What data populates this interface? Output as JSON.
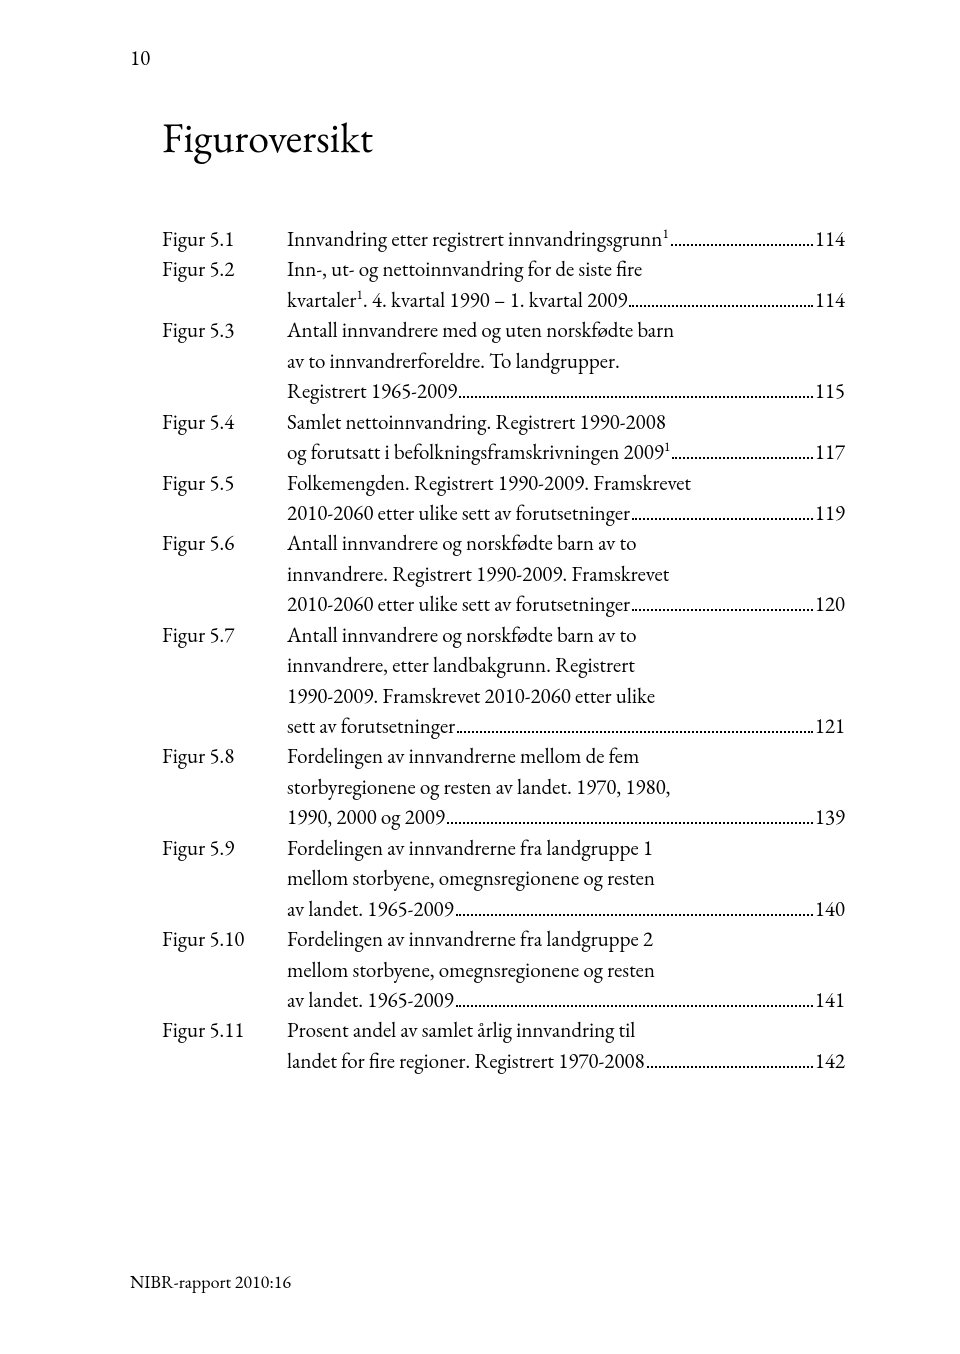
{
  "page_number": "10",
  "title": "Figuroversikt",
  "footer": "NIBR-rapport 2010:16",
  "entries": [
    {
      "label": "Figur 5.1",
      "lines": [
        {
          "text": "Innvandring etter registrert innvandringsgrunn",
          "sup": "1",
          "page": "114"
        }
      ]
    },
    {
      "label": "Figur 5.2",
      "lines": [
        {
          "text": "Inn-, ut- og nettoinnvandring for de siste fire"
        },
        {
          "text": "kvartaler",
          "sup": "1",
          "after_sup": ". 4. kvartal 1990 – 1. kvartal 2009",
          "page": "114"
        }
      ]
    },
    {
      "label": "Figur 5.3",
      "lines": [
        {
          "text": "Antall innvandrere med og uten norskfødte barn"
        },
        {
          "text": "av to innvandrerforeldre. To landgrupper."
        },
        {
          "text": "Registrert 1965-2009",
          "page": "115"
        }
      ]
    },
    {
      "label": "Figur 5.4",
      "lines": [
        {
          "text": "Samlet nettoinnvandring. Registrert 1990-2008"
        },
        {
          "text": "og forutsatt i befolkningsframskrivningen 2009",
          "sup": "1",
          "page": "117"
        }
      ]
    },
    {
      "label": "Figur 5.5",
      "lines": [
        {
          "text": "Folkemengden. Registrert 1990-2009. Framskrevet"
        },
        {
          "text": "2010-2060 etter ulike sett av forutsetninger",
          "page": "119"
        }
      ]
    },
    {
      "label": "Figur 5.6",
      "lines": [
        {
          "text": "Antall innvandrere og norskfødte barn av to"
        },
        {
          "text": "innvandrere. Registrert 1990-2009. Framskrevet"
        },
        {
          "text": "2010-2060 etter ulike sett av forutsetninger",
          "page": "120"
        }
      ]
    },
    {
      "label": "Figur 5.7",
      "lines": [
        {
          "text": "Antall innvandrere og norskfødte barn av to"
        },
        {
          "text": "innvandrere, etter landbakgrunn. Registrert"
        },
        {
          "text": "1990-2009. Framskrevet 2010-2060 etter ulike"
        },
        {
          "text": "sett av forutsetninger",
          "page": "121"
        }
      ]
    },
    {
      "label": "Figur 5.8",
      "lines": [
        {
          "text": "Fordelingen av innvandrerne mellom de fem"
        },
        {
          "text": "storbyregionene og resten av landet. 1970, 1980,"
        },
        {
          "text": "1990, 2000 og 2009",
          "page": "139"
        }
      ]
    },
    {
      "label": "Figur 5.9",
      "lines": [
        {
          "text": "Fordelingen av innvandrerne fra landgruppe 1"
        },
        {
          "text": "mellom storbyene, omegnsregionene og resten"
        },
        {
          "text": "av landet. 1965-2009",
          "page": "140"
        }
      ]
    },
    {
      "label": "Figur 5.10",
      "lines": [
        {
          "text": "Fordelingen av innvandrerne fra landgruppe 2"
        },
        {
          "text": "mellom storbyene, omegnsregionene og resten"
        },
        {
          "text": "av landet. 1965-2009",
          "page": "141"
        }
      ]
    },
    {
      "label": "Figur 5.11",
      "lines": [
        {
          "text": "Prosent andel av samlet årlig innvandring til"
        },
        {
          "text": "landet for fire regioner. Registrert 1970-2008",
          "page": "142"
        }
      ]
    }
  ]
}
